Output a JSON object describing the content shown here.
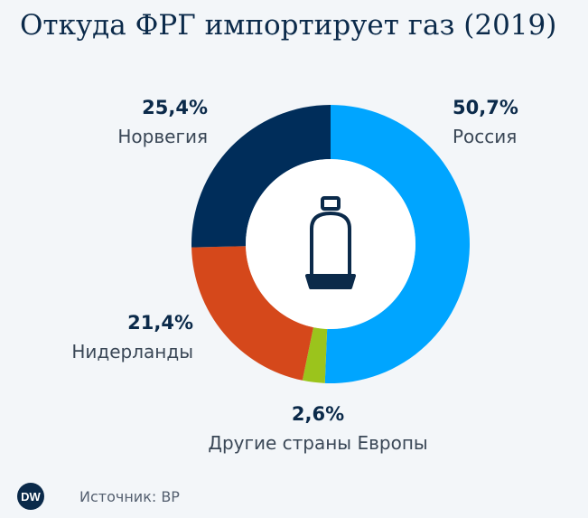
{
  "title": "Откуда ФРГ импортирует газ (2019)",
  "source": "Источник: BP",
  "logo": {
    "text": "DW",
    "icon": "dw-logo-icon"
  },
  "center_icon": "gas-cylinder-icon",
  "chart_data": {
    "type": "pie",
    "title": "Откуда ФРГ импортирует газ (2019)",
    "donut": true,
    "start": "top",
    "direction": "clockwise",
    "categories": [
      "Россия",
      "Другие страны Европы",
      "Нидерланды",
      "Норвегия"
    ],
    "values": [
      50.7,
      2.6,
      21.4,
      25.4
    ],
    "value_labels": [
      "50,7%",
      "2,6%",
      "21,4%",
      "25,4%"
    ],
    "colors": [
      "#00a5ff",
      "#9bc41c",
      "#d5481b",
      "#002d5a"
    ]
  }
}
